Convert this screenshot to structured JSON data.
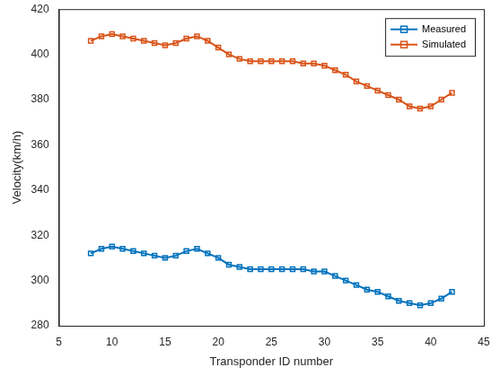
{
  "chart_data": {
    "type": "line",
    "x_label": "Transponder ID number",
    "y_label": "Velocity(km/h)",
    "x": [
      8,
      9,
      10,
      11,
      12,
      13,
      14,
      15,
      16,
      17,
      18,
      19,
      20,
      21,
      22,
      23,
      24,
      25,
      26,
      27,
      28,
      29,
      30,
      31,
      32,
      33,
      34,
      35,
      36,
      37,
      38,
      39,
      40,
      41,
      42
    ],
    "series": [
      {
        "name": "Measured",
        "color": "#0072bd",
        "marker": "square",
        "line_style": "solid",
        "values": [
          312,
          314,
          315,
          314,
          313,
          312,
          311,
          310,
          311,
          313,
          314,
          312,
          310,
          307,
          306,
          305,
          305,
          305,
          305,
          305,
          305,
          304,
          304,
          302,
          300,
          298,
          296,
          295,
          293,
          291,
          290,
          289,
          290,
          292,
          295
        ]
      },
      {
        "name": "Simulated",
        "color": "#d95319",
        "marker": "square",
        "line_style": "solid",
        "values": [
          406,
          408,
          409,
          408,
          407,
          406,
          405,
          404,
          405,
          407,
          408,
          406,
          403,
          400,
          398,
          397,
          397,
          397,
          397,
          397,
          396,
          396,
          395,
          393,
          391,
          388,
          386,
          384,
          382,
          380,
          377,
          376,
          377,
          380,
          383
        ]
      }
    ],
    "xlim": [
      5,
      45
    ],
    "xticks": [
      5,
      10,
      15,
      20,
      25,
      30,
      35,
      40,
      45
    ],
    "ylim": [
      280,
      420
    ],
    "yticks": [
      280,
      300,
      320,
      340,
      360,
      380,
      400,
      420
    ],
    "grid": false,
    "legend": "northeast"
  }
}
